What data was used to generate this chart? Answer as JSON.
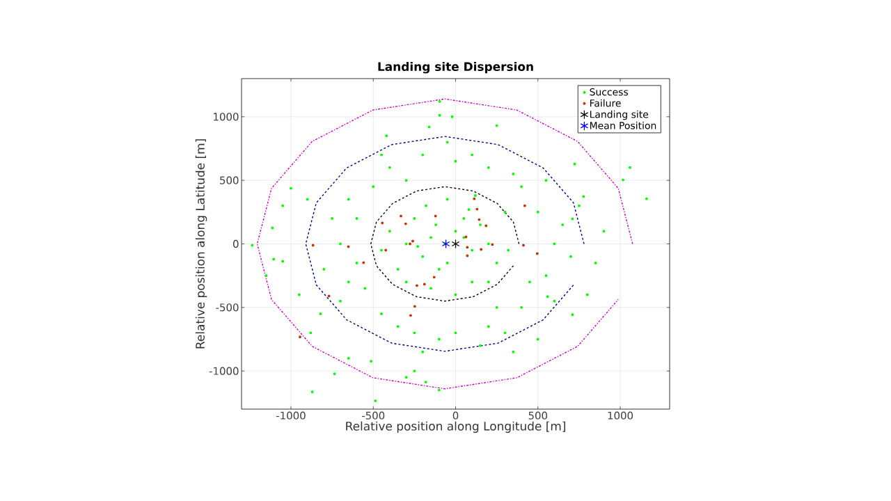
{
  "chart_data": {
    "type": "scatter",
    "title": "Landing site Dispersion",
    "xlabel": "Relative position along Longitude [m]",
    "ylabel": "Relative position along Latitude [m]",
    "xlim": [
      -1300,
      1300
    ],
    "ylim": [
      -1300,
      1300
    ],
    "xticks": [
      -1000,
      -500,
      0,
      500,
      1000
    ],
    "yticks": [
      -1000,
      -500,
      0,
      500,
      1000
    ],
    "grid": true,
    "legend": "top right",
    "series": [
      {
        "name": "Success",
        "marker": "circle",
        "color": "#00ff00",
        "x": [
          -65,
          0,
          -150,
          100,
          -200,
          50,
          -100,
          150,
          -300,
          200,
          -250,
          -50,
          100,
          -350,
          250,
          -180,
          300,
          -400,
          0,
          -150,
          320,
          -450,
          120,
          -300,
          200,
          -50,
          50,
          -230,
          80,
          -120,
          -600,
          -500,
          -400,
          -200,
          0,
          200,
          400,
          500,
          600,
          550,
          400,
          200,
          0,
          -250,
          -450,
          -650,
          -700,
          -600,
          350,
          -300,
          -550,
          450,
          100,
          -100,
          250,
          -650,
          650,
          -350,
          300,
          -750,
          700,
          -50,
          550,
          -450,
          -800,
          150,
          -200,
          600,
          750,
          -700,
          1160,
          1017,
          1059,
          723,
          777,
          710,
          559,
          710,
          -1235,
          -1113,
          -1105,
          -1050,
          -1000,
          -870,
          -487,
          -735,
          -513,
          -181,
          -97,
          -97,
          -21,
          -300,
          -900,
          -950,
          850,
          900,
          -420,
          250,
          -1050,
          -880,
          500,
          800,
          -1150,
          -650,
          -100,
          -250,
          350,
          -820,
          -160
        ],
        "values": [
          0,
          100,
          50,
          -50,
          -100,
          200,
          -200,
          150,
          0,
          0,
          200,
          350,
          -300,
          -200,
          -150,
          300,
          250,
          100,
          -400,
          -350,
          -50,
          -50,
          380,
          -300,
          -300,
          -150,
          50,
          -20,
          270,
          150,
          200,
          450,
          600,
          700,
          650,
          600,
          450,
          250,
          0,
          -250,
          -500,
          -650,
          -700,
          -700,
          -550,
          -300,
          0,
          -150,
          550,
          500,
          -350,
          -300,
          700,
          -750,
          -500,
          350,
          150,
          -650,
          -700,
          200,
          -100,
          800,
          500,
          700,
          -200,
          -800,
          -850,
          -450,
          300,
          -450,
          355,
          503,
          601,
          628,
          372,
          197,
          -415,
          -557,
          -11,
          126,
          -120,
          -137,
          437,
          -1164,
          -1235,
          -1022,
          -923,
          -1087,
          1120,
          1011,
          1000,
          -1050,
          350,
          -400,
          -150,
          100,
          850,
          930,
          300,
          -700,
          -750,
          -400,
          -250,
          -900,
          -1150,
          -1000,
          -850,
          -550,
          920
        ]
      },
      {
        "name": "Failure",
        "marker": "circle",
        "color": "#c83200",
        "x": [
          -332,
          -303,
          -445,
          -122,
          -260,
          113,
          130,
          143,
          185,
          420,
          63,
          -866,
          -651,
          -559,
          -424,
          -769,
          -945,
          -235,
          -189,
          -130,
          -248,
          -273,
          -277,
          71,
          155,
          71,
          223,
          412,
          496
        ],
        "values": [
          219,
          158,
          164,
          219,
          22,
          355,
          273,
          191,
          142,
          300,
          55,
          -11,
          -22,
          -148,
          -49,
          -410,
          -732,
          -328,
          -317,
          -262,
          -492,
          -563,
          0,
          -27,
          -44,
          -93,
          -5,
          -11,
          -77
        ]
      },
      {
        "name": "Landing site",
        "marker": "cross",
        "color": "#000000",
        "x": [
          0
        ],
        "values": [
          0
        ]
      },
      {
        "name": "Mean Position",
        "marker": "cross",
        "color": "#0000ff",
        "x": [
          -59
        ],
        "values": [
          0
        ]
      },
      {
        "type": "line",
        "line_style": "dashed",
        "color": "#000000",
        "x": [
          385,
          351,
          253,
          107,
          -65,
          -237,
          -383,
          -481,
          -515,
          -481,
          -383,
          -237,
          -65,
          107,
          253,
          351
        ],
        "values": [
          0,
          172,
          318,
          416,
          450,
          416,
          318,
          172,
          0,
          -172,
          -318,
          -416,
          -450,
          -416,
          -318,
          -172
        ]
      },
      {
        "type": "line",
        "line_style": "dashed",
        "color": "#000080",
        "x": [
          780,
          716,
          532,
          258,
          -65,
          -388,
          -662,
          -846,
          -910,
          -846,
          -662,
          -388,
          -65,
          258,
          532,
          716
        ],
        "values": [
          0,
          323,
          597,
          781,
          845,
          781,
          597,
          323,
          0,
          -323,
          -597,
          -781,
          -845,
          -781,
          -597,
          -323
        ]
      },
      {
        "type": "line",
        "line_style": "dashdot",
        "color": "#cc00cc",
        "x": [
          1075,
          988,
          741,
          372,
          -65,
          -502,
          -871,
          -1118,
          -1205,
          -1118,
          -871,
          -502,
          -65,
          372,
          741,
          988
        ],
        "values": [
          0,
          437,
          806,
          1053,
          1140,
          1053,
          806,
          437,
          0,
          -437,
          -806,
          -1053,
          -1140,
          -1053,
          -806,
          -437
        ]
      }
    ]
  }
}
